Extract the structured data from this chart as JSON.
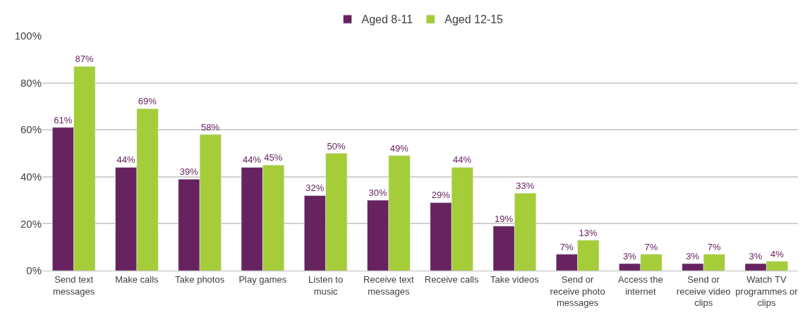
{
  "chart_data": {
    "type": "bar",
    "categories": [
      "Send text messages",
      "Make calls",
      "Take photos",
      "Play games",
      "Listen to music",
      "Receive text messages",
      "Receive calls",
      "Take videos",
      "Send or receive photo messages",
      "Access the internet",
      "Send or receive video clips",
      "Watch TV programmes or clips"
    ],
    "series": [
      {
        "name": "Aged 8-11",
        "color": "#66235f",
        "values": [
          61,
          44,
          39,
          44,
          32,
          30,
          29,
          19,
          7,
          3,
          3,
          3
        ],
        "value_labels": [
          "61%",
          "44%",
          "39%",
          "44%",
          "32%",
          "30%",
          "29%",
          "19%",
          "7%",
          "3%",
          "3%",
          "3%"
        ]
      },
      {
        "name": "Aged 12-15",
        "color": "#a5cd39",
        "values": [
          87,
          69,
          58,
          45,
          50,
          49,
          44,
          33,
          13,
          7,
          7,
          4
        ],
        "value_labels": [
          "87%",
          "69%",
          "58%",
          "45%",
          "50%",
          "49%",
          "44%",
          "33%",
          "13%",
          "7%",
          "7%",
          "4%"
        ]
      }
    ],
    "ylim": [
      0,
      100
    ],
    "yticks": [
      {
        "value": 0,
        "label": "0%"
      },
      {
        "value": 20,
        "label": "20%"
      },
      {
        "value": 40,
        "label": "40%"
      },
      {
        "value": 60,
        "label": "60%"
      },
      {
        "value": 80,
        "label": "80%"
      },
      {
        "value": 100,
        "label": "100%"
      }
    ],
    "grid": "y",
    "legend": "top"
  }
}
